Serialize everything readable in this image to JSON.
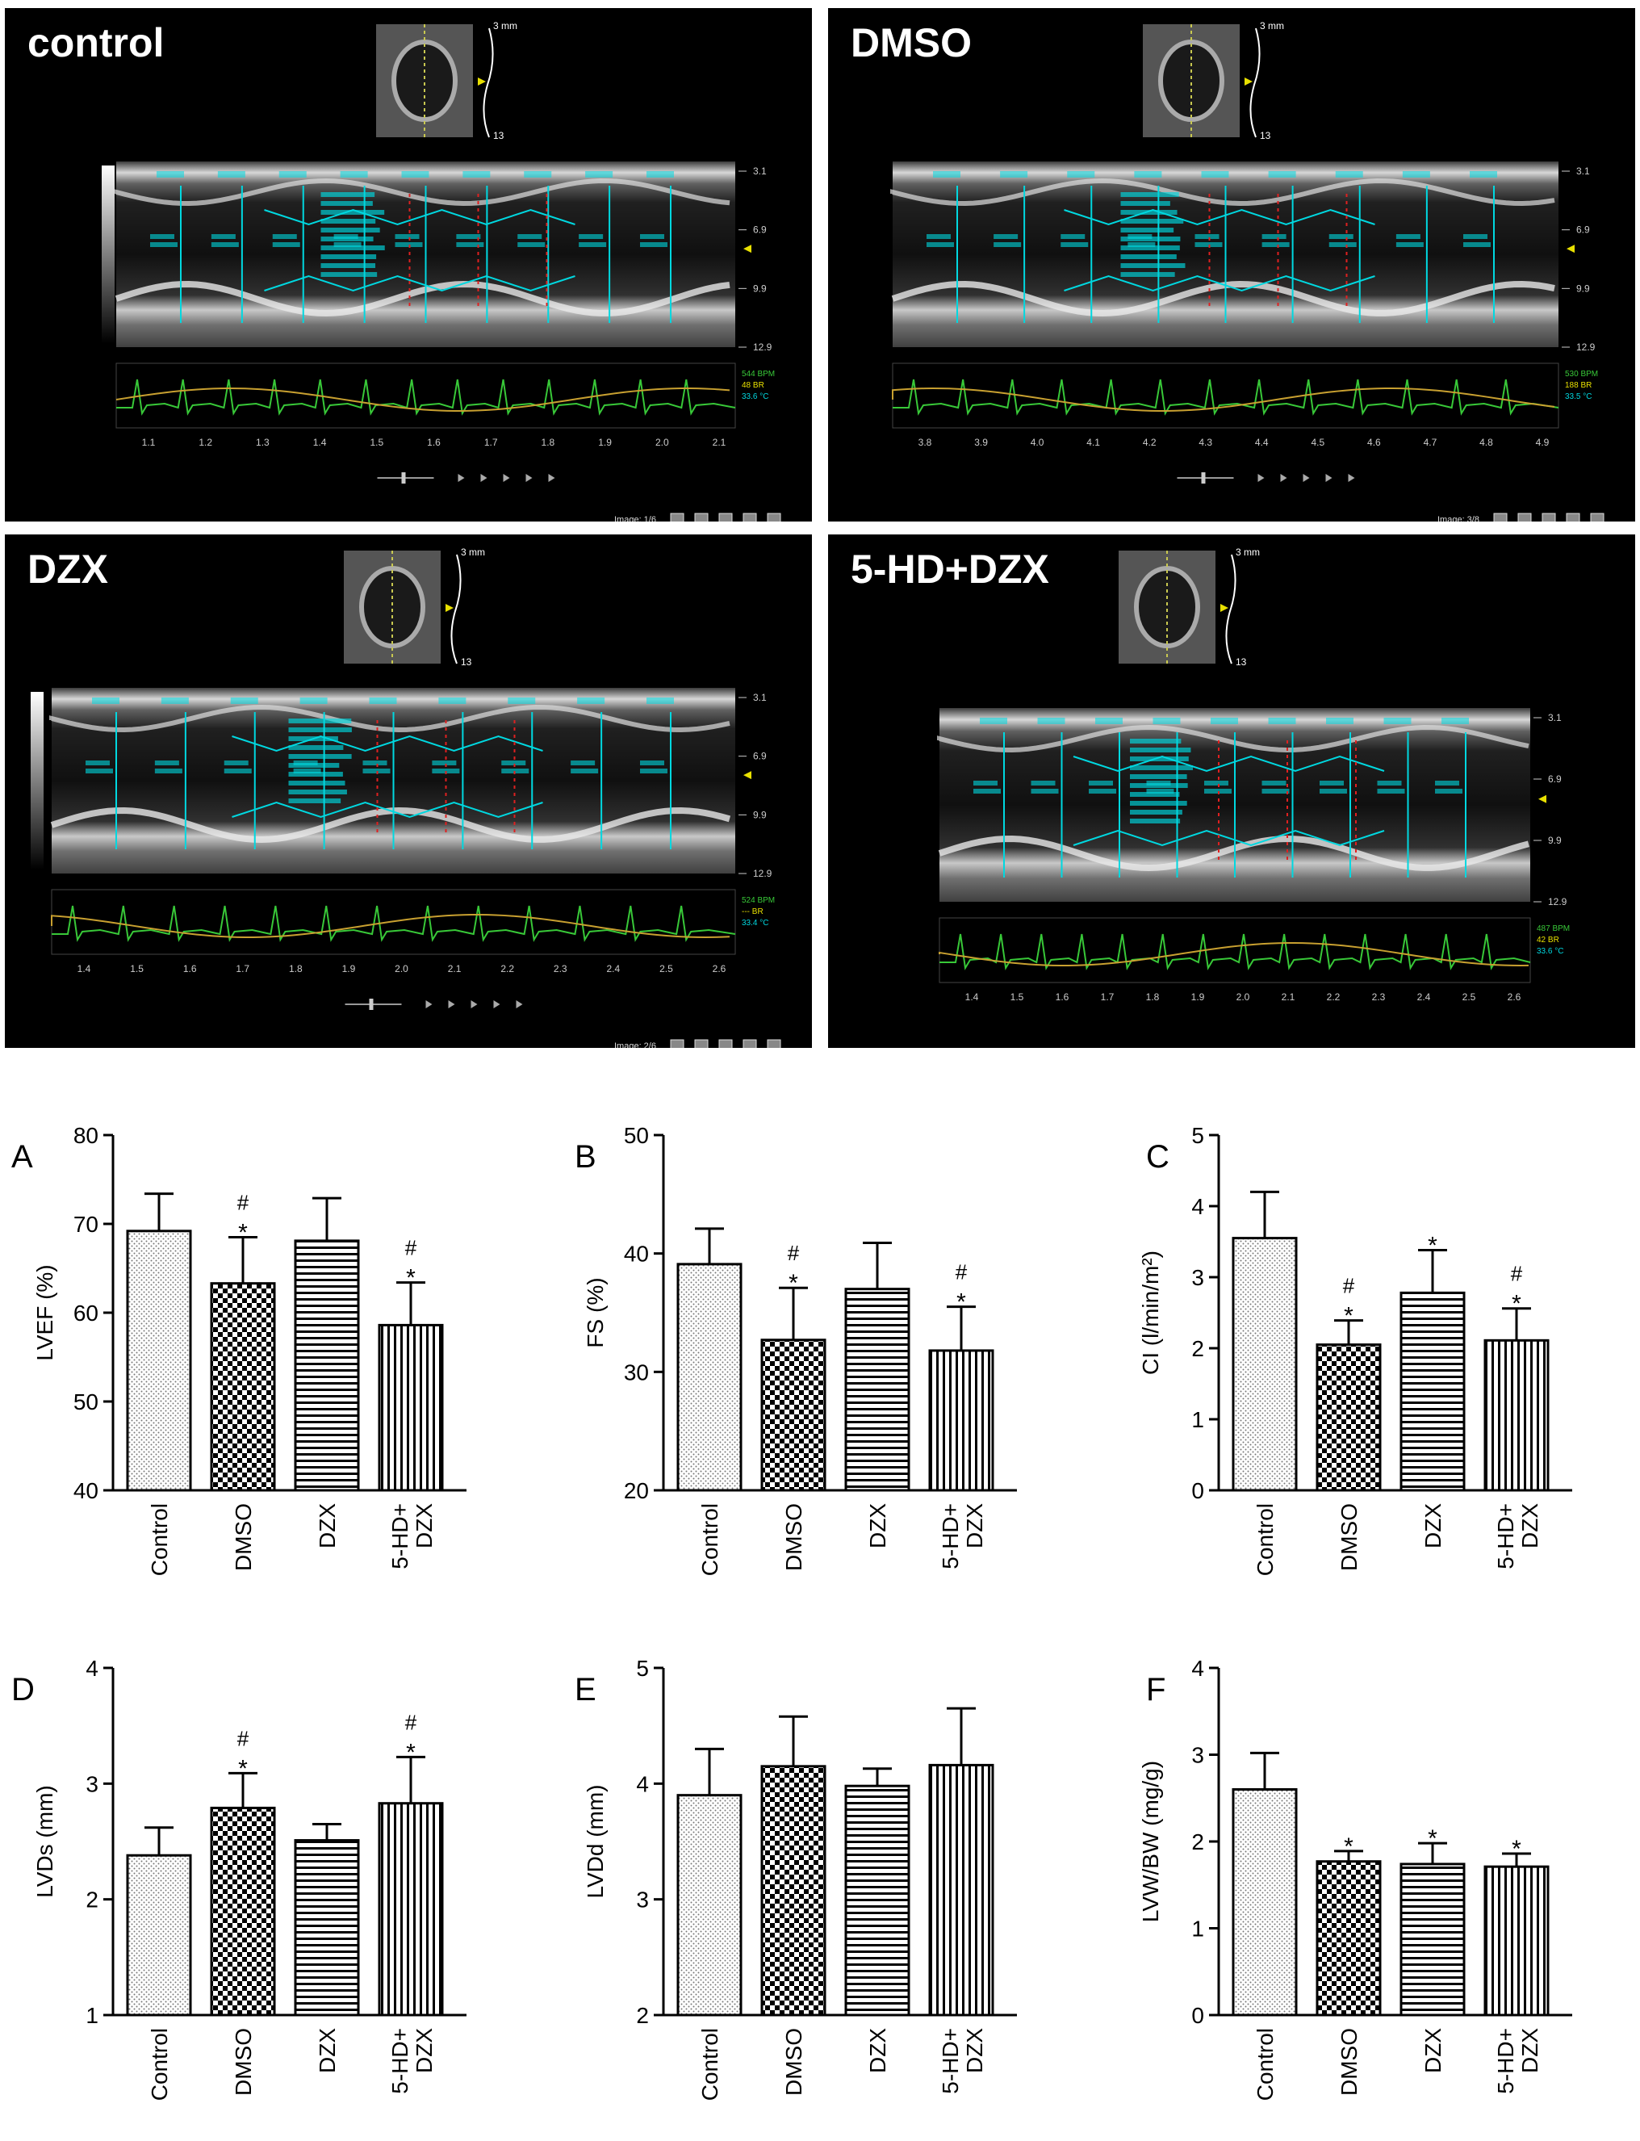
{
  "echo_panels": [
    {
      "label": "control",
      "scale_top": "3 mm",
      "scale_bottom": "13",
      "depth_ticks": [
        "3.1",
        "6.9",
        "9.9",
        "12.9"
      ],
      "time_ticks": [
        "1.1",
        "1.2",
        "1.3",
        "1.4",
        "1.5",
        "1.6",
        "1.7",
        "1.8",
        "1.9",
        "2.0",
        "2.1"
      ],
      "vitals": [
        "544 BPM",
        "48 BR",
        "33.6 °C"
      ],
      "image_counter": "Image: 1/6"
    },
    {
      "label": "DMSO",
      "scale_top": "3 mm",
      "scale_bottom": "13",
      "depth_ticks": [
        "3.1",
        "6.9",
        "9.9",
        "12.9"
      ],
      "time_ticks": [
        "3.8",
        "3.9",
        "4.0",
        "4.1",
        "4.2",
        "4.3",
        "4.4",
        "4.5",
        "4.6",
        "4.7",
        "4.8",
        "4.9"
      ],
      "vitals": [
        "530 BPM",
        "188 BR",
        "33.5 °C"
      ],
      "image_counter": "Image: 3/8"
    },
    {
      "label": "DZX",
      "scale_top": "3 mm",
      "scale_bottom": "13",
      "depth_ticks": [
        "3.1",
        "6.9",
        "9.9",
        "12.9"
      ],
      "time_ticks": [
        "1.4",
        "1.5",
        "1.6",
        "1.7",
        "1.8",
        "1.9",
        "2.0",
        "2.1",
        "2.2",
        "2.3",
        "2.4",
        "2.5",
        "2.6"
      ],
      "vitals": [
        "524 BPM",
        "--- BR",
        "33.4 °C"
      ],
      "image_counter": "Image: 2/6"
    },
    {
      "label": "5-HD+DZX",
      "scale_top": "3 mm",
      "scale_bottom": "13",
      "depth_ticks": [
        "3.1",
        "6.9",
        "9.9",
        "12.9"
      ],
      "time_ticks": [
        "1.4",
        "1.5",
        "1.6",
        "1.7",
        "1.8",
        "1.9",
        "2.0",
        "2.1",
        "2.2",
        "2.3",
        "2.4",
        "2.5",
        "2.6"
      ],
      "vitals": [
        "487 BPM",
        "42 BR",
        "33.6 °C"
      ],
      "image_counter": ""
    }
  ],
  "chart_data": [
    {
      "panel": "A",
      "type": "bar",
      "categories": [
        "Control",
        "DMSO",
        "DZX",
        "5-HD+ DZX"
      ],
      "values": [
        69.2,
        63.3,
        68.1,
        58.6
      ],
      "errors": [
        4.2,
        5.2,
        4.8,
        4.8
      ],
      "annotations": [
        "",
        "#*",
        "",
        "#*"
      ],
      "ylabel": "LVEF (%)",
      "ylim": [
        40,
        80
      ],
      "yticks": [
        40,
        50,
        60,
        70,
        80
      ]
    },
    {
      "panel": "B",
      "type": "bar",
      "categories": [
        "Control",
        "DMSO",
        "DZX",
        "5-HD+ DZX"
      ],
      "values": [
        39.1,
        32.7,
        37.0,
        31.8
      ],
      "errors": [
        3.0,
        4.4,
        3.9,
        3.7
      ],
      "annotations": [
        "",
        "#*",
        "",
        "#*"
      ],
      "ylabel": "FS (%)",
      "ylim": [
        20,
        50
      ],
      "yticks": [
        20,
        30,
        40,
        50
      ]
    },
    {
      "panel": "C",
      "type": "bar",
      "categories": [
        "Control",
        "DMSO",
        "DZX",
        "5-HD+ DZX"
      ],
      "values": [
        3.55,
        2.05,
        2.78,
        2.11
      ],
      "errors": [
        0.65,
        0.34,
        0.6,
        0.45
      ],
      "annotations": [
        "",
        "#*",
        "*",
        "#*"
      ],
      "ylabel": "CI (l/min/m²)",
      "ylim": [
        0,
        5
      ],
      "yticks": [
        0,
        1,
        2,
        3,
        4,
        5
      ]
    },
    {
      "panel": "D",
      "type": "bar",
      "categories": [
        "Control",
        "DMSO",
        "DZX",
        "5-HD+ DZX"
      ],
      "values": [
        2.38,
        2.79,
        2.51,
        2.83
      ],
      "errors": [
        0.24,
        0.3,
        0.14,
        0.4
      ],
      "annotations": [
        "",
        "#*",
        "",
        "#*"
      ],
      "ylabel": "LVDs (mm)",
      "ylim": [
        1,
        4
      ],
      "yticks": [
        1,
        2,
        3,
        4
      ]
    },
    {
      "panel": "E",
      "type": "bar",
      "categories": [
        "Control",
        "DMSO",
        "DZX",
        "5-HD+ DZX"
      ],
      "values": [
        3.9,
        4.15,
        3.98,
        4.16
      ],
      "errors": [
        0.4,
        0.43,
        0.15,
        0.49
      ],
      "annotations": [
        "",
        "",
        "",
        ""
      ],
      "ylabel": "LVDd (mm)",
      "ylim": [
        2,
        5
      ],
      "yticks": [
        2,
        3,
        4,
        5
      ]
    },
    {
      "panel": "F",
      "type": "bar",
      "categories": [
        "Control",
        "DMSO",
        "DZX",
        "5-HD+ DZX"
      ],
      "values": [
        2.6,
        1.77,
        1.74,
        1.71
      ],
      "errors": [
        0.42,
        0.12,
        0.24,
        0.15
      ],
      "annotations": [
        "",
        "*",
        "*",
        "*"
      ],
      "ylabel": "LVW/BW (mg/g)",
      "ylim": [
        0,
        4
      ],
      "yticks": [
        0,
        1,
        2,
        3,
        4
      ]
    }
  ],
  "colors": {
    "bar_stroke": "#000000",
    "axis": "#000000",
    "echo_background": "#000000",
    "echo_overlay": "#00d8e0",
    "ecg": "#38c838",
    "resp": "#c8a030",
    "marker": "#e8e000"
  }
}
